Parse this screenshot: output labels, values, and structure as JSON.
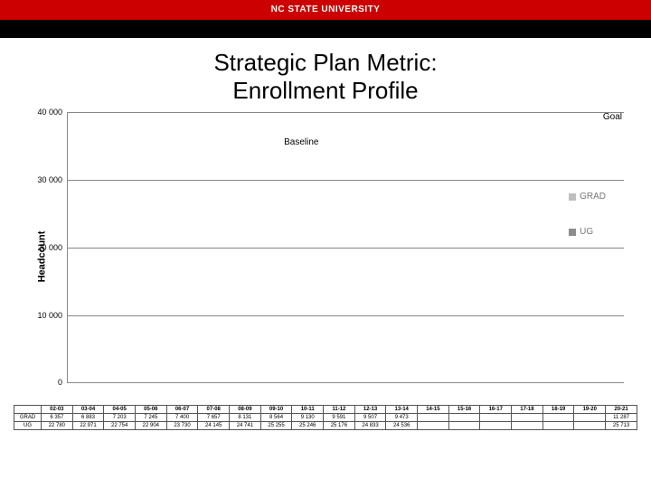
{
  "header": {
    "brand": "NC STATE UNIVERSITY"
  },
  "title": {
    "line1": "Strategic Plan Metric:",
    "line2": "Enrollment Profile"
  },
  "chart": {
    "type": "stacked-bar",
    "ylabel": "Headcount",
    "ymax": 40000,
    "yticks": [
      0,
      10000,
      20000,
      30000,
      40000
    ],
    "ytick_labels": [
      "0",
      "10 000",
      "20 000",
      "30 000",
      "40 000"
    ],
    "goal_label": "Goal",
    "baseline_label": "Baseline",
    "baseline_position": 0.42,
    "legend": [
      {
        "label": "GRAD",
        "color": "#bfbfbf"
      },
      {
        "label": "UG",
        "color": "#8c8c8c"
      }
    ],
    "colors": {
      "ug_default": "#8c8c8c",
      "grad_default": "#bfbfbf",
      "ug_highlight": "#cc0000",
      "grad_highlight": "#e06666",
      "grad_highlight_hatch": true,
      "ug_goal": "#f2b600",
      "grad_goal": "#ffe28a",
      "grad_goal_hatch": true,
      "grid": "#888888",
      "background": "#ffffff"
    },
    "years": [
      "02-03",
      "03-04",
      "04-05",
      "05-06",
      "06-07",
      "07-08",
      "08-09",
      "09-10",
      "10-11",
      "11-12",
      "12-13",
      "13-14",
      "14-15",
      "15-16",
      "16-17",
      "17-18",
      "18-19",
      "19-20",
      "20-21"
    ],
    "highlight_index": 6,
    "goal_index": 18,
    "ug": [
      22780,
      22971,
      22754,
      22904,
      23730,
      24145,
      24741,
      25255,
      25246,
      25176,
      24833,
      24536,
      null,
      null,
      null,
      null,
      null,
      null,
      25713
    ],
    "grad": [
      6357,
      6883,
      7203,
      7245,
      7400,
      7657,
      8131,
      8564,
      9130,
      9591,
      9507,
      9473,
      null,
      null,
      null,
      null,
      null,
      null,
      11287
    ]
  },
  "table": {
    "row_labels": [
      "GRAD",
      "UG"
    ],
    "years": [
      "02-03",
      "03-04",
      "04-05",
      "05-06",
      "06-07",
      "07-08",
      "08-09",
      "09-10",
      "10-11",
      "11-12",
      "12-13",
      "13-14",
      "14-15",
      "15-16",
      "16-17",
      "17-18",
      "18-19",
      "19-20",
      "20-21"
    ],
    "grad": [
      "6 357",
      "6 883",
      "7 203",
      "7 245",
      "7 400",
      "7 657",
      "8 131",
      "8 564",
      "9 130",
      "9 591",
      "9 507",
      "9 473",
      "",
      "",
      "",
      "",
      "",
      "",
      "11 287"
    ],
    "ug": [
      "22 780",
      "22 971",
      "22 754",
      "22 904",
      "23 730",
      "24 145",
      "24 741",
      "25 255",
      "25 246",
      "25 176",
      "24 833",
      "24 536",
      "",
      "",
      "",
      "",
      "",
      "",
      "25 713"
    ]
  }
}
